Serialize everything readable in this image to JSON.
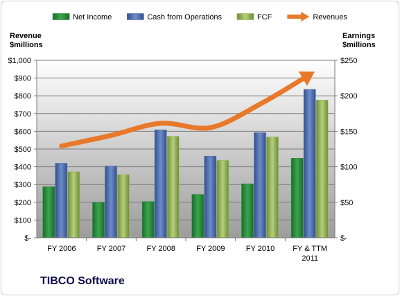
{
  "chart_data": {
    "type": "bar",
    "title": "",
    "categories": [
      "FY 2006",
      "FY 2007",
      "FY 2008",
      "FY 2009",
      "FY 2010",
      "FY & TTM\n2011"
    ],
    "left_axis": {
      "label": "Revenue\n$millions",
      "range": [
        0,
        1000
      ],
      "ticks": [
        "$-",
        "$100",
        "$200",
        "$300",
        "$400",
        "$500",
        "$600",
        "$700",
        "$800",
        "$900",
        "$1,000"
      ]
    },
    "right_axis": {
      "label": "Earnings\n$millions",
      "range": [
        0,
        250
      ],
      "ticks": [
        "$-",
        "$50",
        "$100",
        "$150",
        "$200",
        "$250"
      ]
    },
    "series": [
      {
        "name": "Net Income",
        "axis": "right",
        "kind": "bar",
        "color": "#2e8b3e",
        "values": [
          72,
          50,
          51,
          61,
          76,
          112
        ]
      },
      {
        "name": "Cash from Operations",
        "axis": "right",
        "kind": "bar",
        "color": "#4f6fb0",
        "values": [
          105,
          101,
          152,
          115,
          148,
          209
        ]
      },
      {
        "name": "FCF",
        "axis": "right",
        "kind": "bar",
        "color": "#9bbb59",
        "values": [
          93,
          89,
          143,
          109,
          142,
          194
        ]
      },
      {
        "name": "Revenues",
        "axis": "left",
        "kind": "line",
        "color": "#e8792a",
        "values": [
          517,
          577,
          645,
          621,
          754,
          920
        ]
      }
    ],
    "grid": true,
    "legend_position": "top"
  },
  "footer": {
    "company": "TIBCO Software"
  }
}
